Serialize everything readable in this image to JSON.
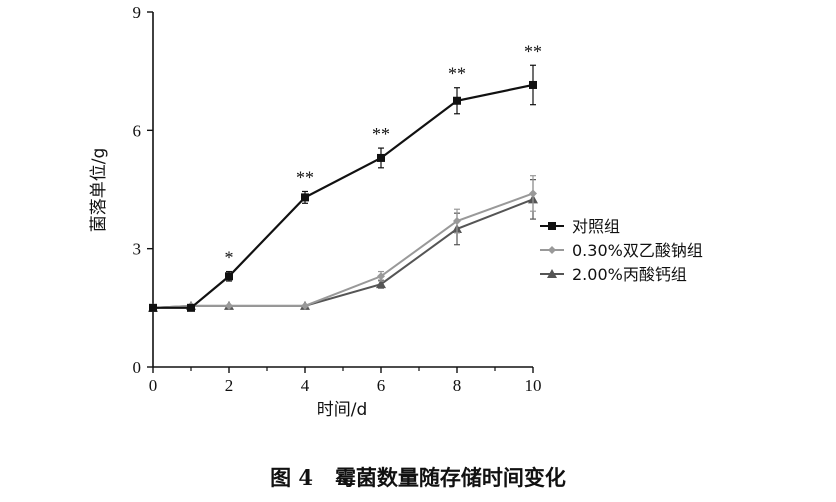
{
  "chart_data": {
    "type": "line",
    "ylabel": "菌落单位/g",
    "xlabel": "时间/d",
    "xlim": [
      0,
      10
    ],
    "ylim": [
      0,
      9
    ],
    "xticks": [
      0,
      2,
      4,
      6,
      8,
      10
    ],
    "yticks": [
      0,
      3,
      6,
      9
    ],
    "legend_position": "right",
    "series": [
      {
        "name": "对照组",
        "color": "#111111",
        "marker": "square",
        "x": [
          0,
          1,
          2,
          4,
          6,
          8,
          10
        ],
        "values": [
          1.5,
          1.5,
          2.3,
          4.3,
          5.3,
          6.75,
          7.15
        ],
        "errors": [
          0.05,
          0.05,
          0.12,
          0.15,
          0.25,
          0.33,
          0.5
        ],
        "significance": [
          "",
          "",
          "*",
          "**",
          "**",
          "**",
          "**"
        ]
      },
      {
        "name": "0.30%双乙酸钠组",
        "color": "#999999",
        "marker": "diamond",
        "x": [
          0,
          1,
          2,
          4,
          6,
          8,
          10
        ],
        "values": [
          1.5,
          1.55,
          1.55,
          1.55,
          2.3,
          3.7,
          4.4
        ],
        "errors": [
          0.04,
          0.04,
          0.04,
          0.04,
          0.12,
          0.3,
          0.45
        ]
      },
      {
        "name": "2.00%丙酸钙组",
        "color": "#555555",
        "marker": "triangle",
        "x": [
          0,
          1,
          2,
          4,
          6,
          8,
          10
        ],
        "values": [
          1.5,
          1.55,
          1.55,
          1.55,
          2.1,
          3.5,
          4.25
        ],
        "errors": [
          0.04,
          0.04,
          0.04,
          0.04,
          0.1,
          0.4,
          0.5
        ]
      }
    ]
  },
  "caption": {
    "label": "图 4",
    "text": "霉菌数量随存储时间变化"
  }
}
